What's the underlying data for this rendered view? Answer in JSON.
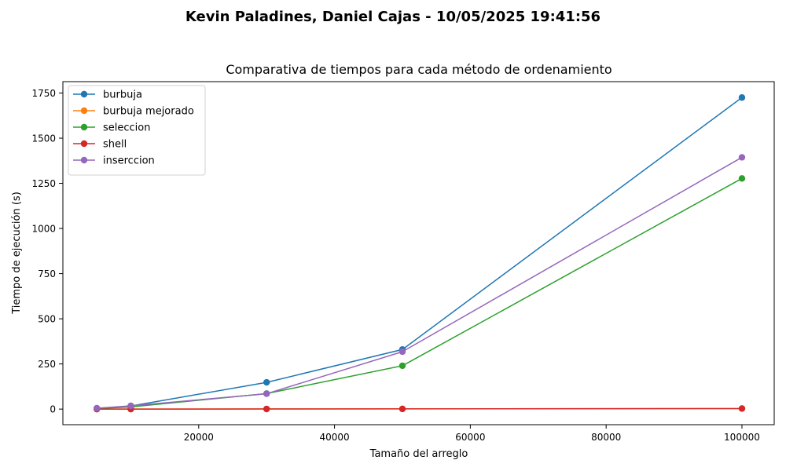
{
  "figure": {
    "suptitle": "Kevin Paladines, Daniel Cajas - 10/05/2025 19:41:56"
  },
  "chart_data": {
    "type": "line",
    "title": "Comparativa de tiempos para cada método de ordenamiento",
    "xlabel": "Tamaño del arreglo",
    "ylabel": "Tiempo de ejecución (s)",
    "x": [
      5000,
      10000,
      30000,
      50000,
      100000
    ],
    "xlim": [
      0,
      104750
    ],
    "ylim": [
      -86.3,
      1813
    ],
    "xticks": [
      20000,
      40000,
      60000,
      80000,
      100000
    ],
    "xtick_labels": [
      "20000",
      "40000",
      "60000",
      "80000",
      "100000"
    ],
    "yticks": [
      0,
      250,
      500,
      750,
      1000,
      1250,
      1500,
      1750
    ],
    "ytick_labels": [
      "0",
      "250",
      "500",
      "750",
      "1000",
      "1250",
      "1500",
      "1750"
    ],
    "grid": false,
    "legend_position": "top-left",
    "series": [
      {
        "name": "burbuja",
        "color": "#1f77b4",
        "values": [
          4,
          17,
          148,
          330,
          1725
        ]
      },
      {
        "name": "burbuja mejorado",
        "color": "#ff7f0e",
        "values": [
          0.1,
          0.3,
          1,
          1.5,
          3
        ]
      },
      {
        "name": "seleccion",
        "color": "#2ca02c",
        "values": [
          3,
          12,
          86,
          240,
          1277
        ]
      },
      {
        "name": "shell",
        "color": "#d62728",
        "values": [
          0.05,
          0.1,
          0.5,
          1,
          3
        ]
      },
      {
        "name": "inserccion",
        "color": "#9467bd",
        "values": [
          5,
          18,
          85,
          318,
          1394
        ]
      }
    ]
  }
}
